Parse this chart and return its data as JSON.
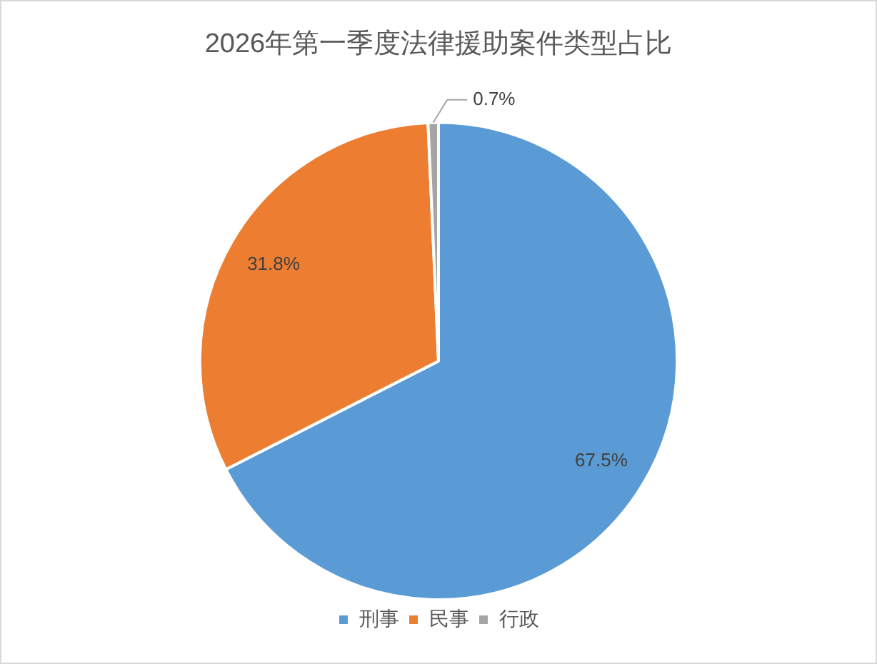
{
  "chart_data": {
    "type": "pie",
    "title": "2026年第一季度法律援助案件类型占比",
    "categories": [
      "刑事",
      "民事",
      "行政"
    ],
    "values": [
      67.5,
      31.8,
      0.7
    ],
    "colors": [
      "#5b9bd5",
      "#ed7d31",
      "#a5a5a5"
    ],
    "value_labels": [
      "67.5%",
      "31.8%",
      "0.7%"
    ],
    "legend": "bottom"
  }
}
